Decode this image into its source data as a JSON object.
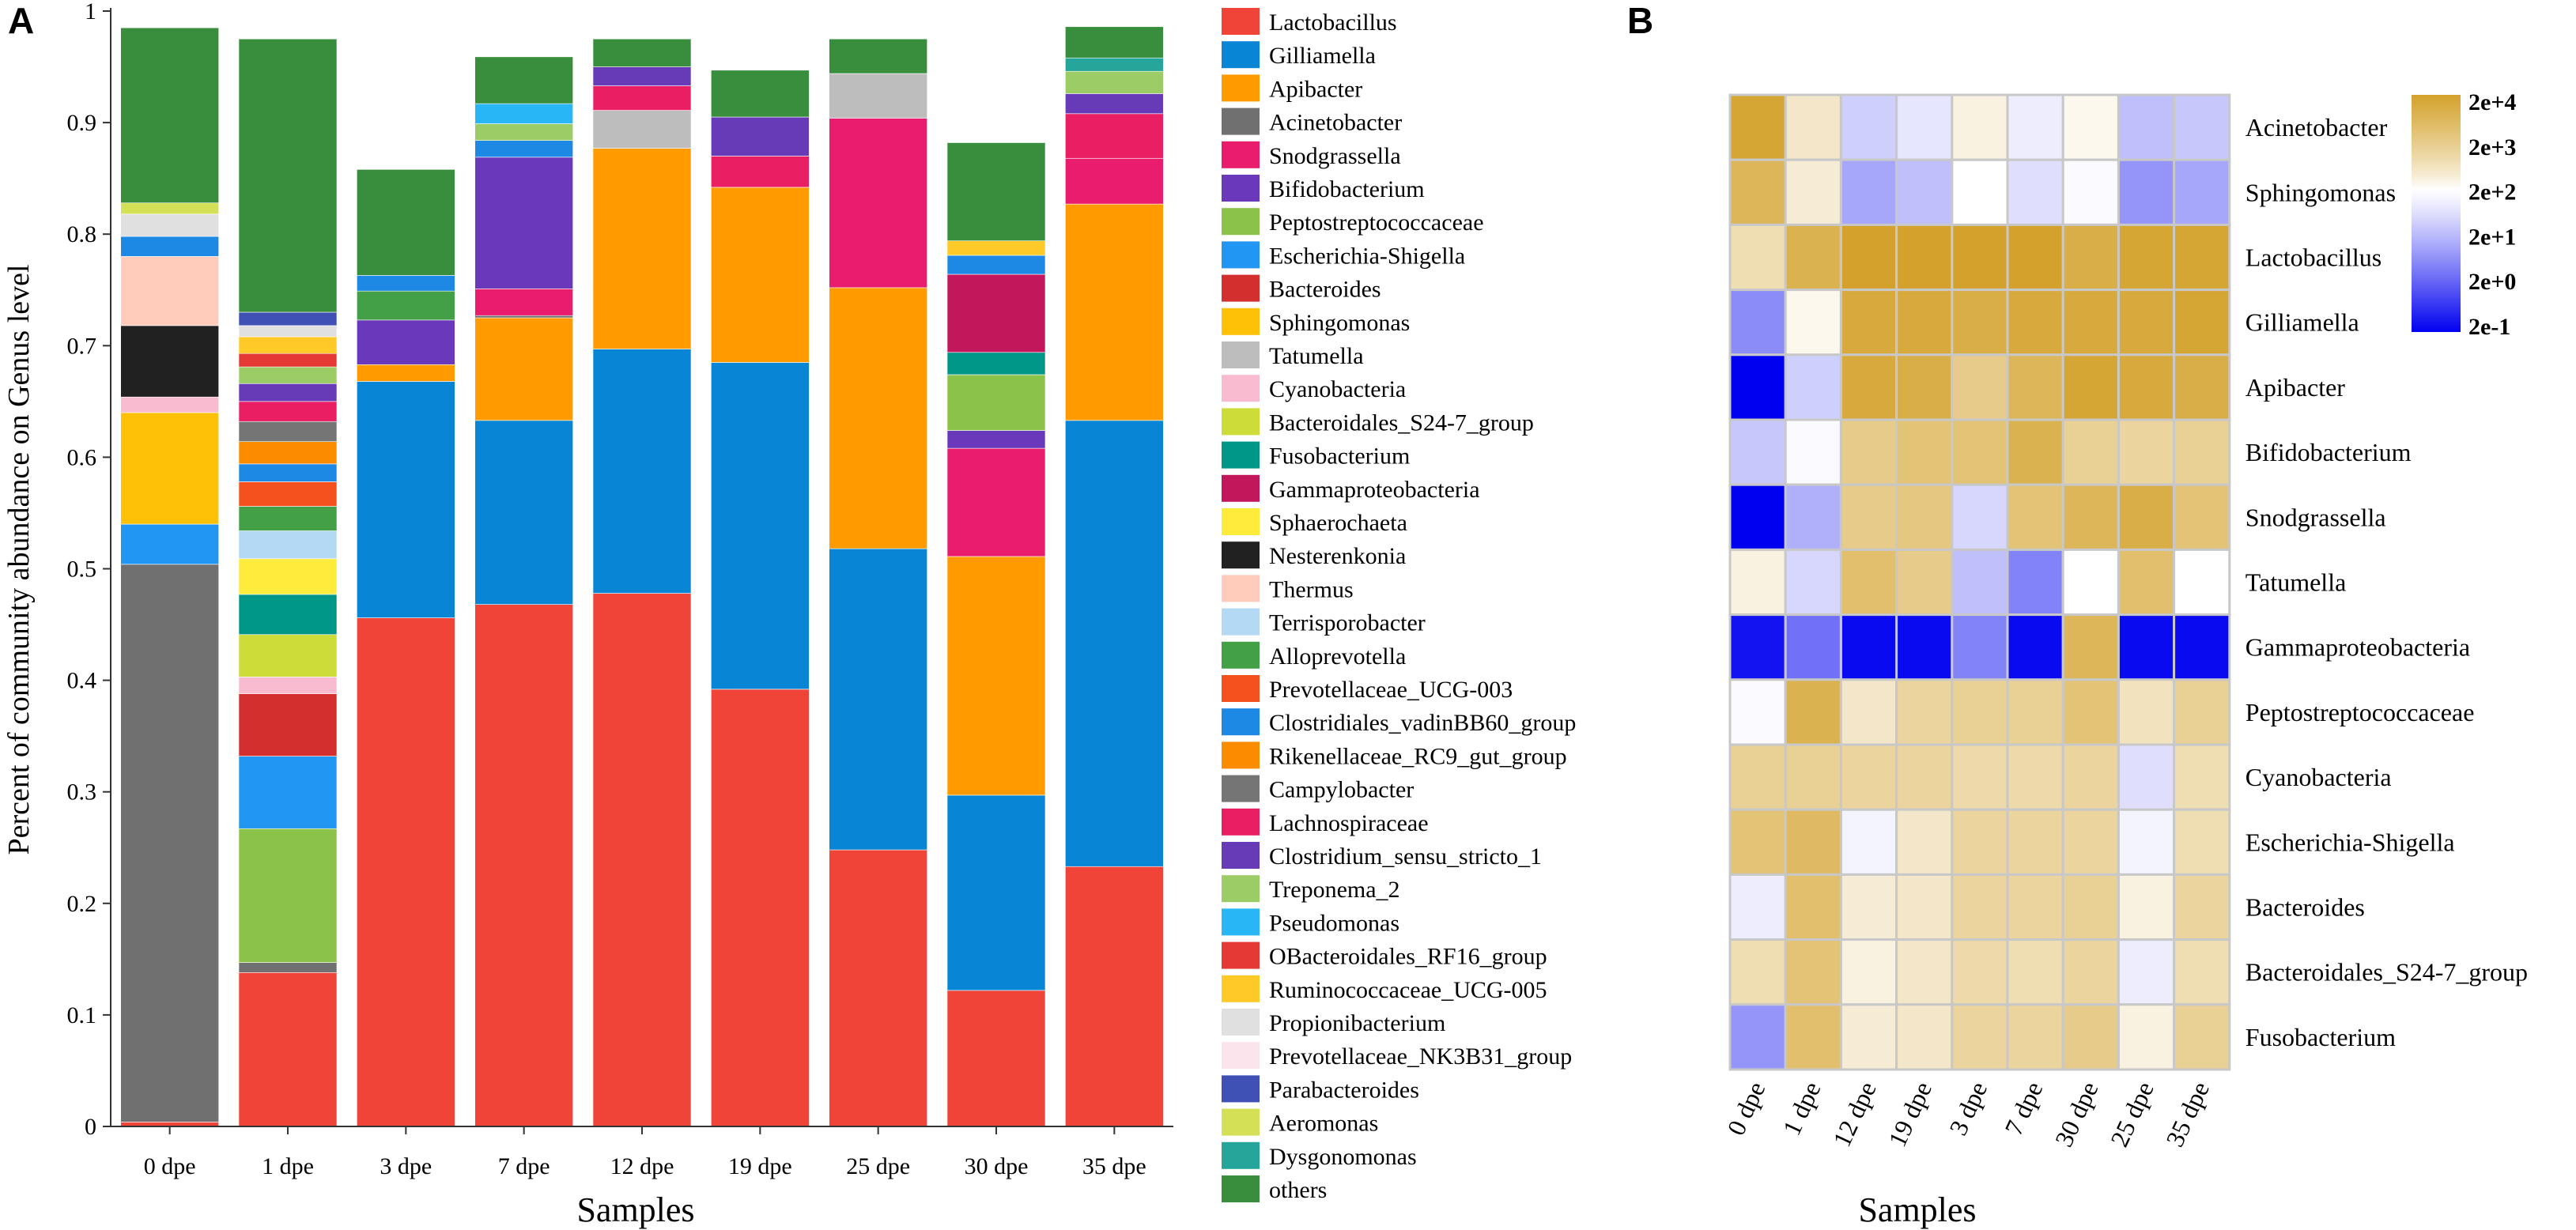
{
  "panel_a": {
    "label": "A"
  },
  "panel_b": {
    "label": "B"
  },
  "chart_data": [
    {
      "type": "bar",
      "stacked": true,
      "title": "",
      "xlabel": "Samples",
      "ylabel": "Percent of community abundance on Genus level",
      "ylim": [
        0,
        1
      ],
      "yticks": [
        "0",
        "0.1",
        "0.2",
        "0.3",
        "0.4",
        "0.5",
        "0.6",
        "0.7",
        "0.8",
        "0.9",
        "1"
      ],
      "categories": [
        "0 dpe",
        "1 dpe",
        "3 dpe",
        "7 dpe",
        "12 dpe",
        "19 dpe",
        "25 dpe",
        "30 dpe",
        "35 dpe"
      ],
      "legend_position": "right",
      "series": [
        {
          "name": "Lactobacillus",
          "color": "#f04438",
          "values": [
            0.004,
            0.138,
            0.456,
            0.468,
            0.478,
            0.392,
            0.248,
            0.122,
            0.233
          ]
        },
        {
          "name": "Gilliamella",
          "color": "#0985d6",
          "values": [
            0.0,
            0.0,
            0.212,
            0.165,
            0.219,
            0.293,
            0.27,
            0.175,
            0.4
          ]
        },
        {
          "name": "Apibacter",
          "color": "#ff9b00",
          "values": [
            0.0,
            0.0,
            0.015,
            0.092,
            0.18,
            0.157,
            0.234,
            0.214,
            0.194
          ]
        },
        {
          "name": "Acinetobacter",
          "color": "#707070",
          "values": [
            0.5,
            0.009,
            0.0,
            0.002,
            0.0,
            0.0,
            0.0,
            0.0,
            0.0
          ]
        },
        {
          "name": "Snodgrassella",
          "color": "#ea1c6d",
          "values": [
            0.0,
            0.0,
            0.0,
            0.024,
            0.0,
            0.0,
            0.152,
            0.097,
            0.041
          ]
        },
        {
          "name": "Bifidobacterium",
          "color": "#6a39bb",
          "values": [
            0.0,
            0.0,
            0.04,
            0.118,
            0.0,
            0.0,
            0.0,
            0.016,
            0.0
          ]
        },
        {
          "name": "Peptostreptococcaceae",
          "color": "#8bc34a",
          "values": [
            0.0,
            0.12,
            0.0,
            0.0,
            0.0,
            0.0,
            0.0,
            0.05,
            0.0
          ]
        },
        {
          "name": "Escherichia-Shigella",
          "color": "#2196f3",
          "values": [
            0.036,
            0.065,
            0.0,
            0.0,
            0.0,
            0.0,
            0.0,
            0.0,
            0.0
          ]
        },
        {
          "name": "Bacteroides",
          "color": "#d32f2f",
          "values": [
            0.0,
            0.056,
            0.0,
            0.0,
            0.0,
            0.0,
            0.0,
            0.0,
            0.0
          ]
        },
        {
          "name": "Sphingomonas",
          "color": "#ffc107",
          "values": [
            0.1,
            0.0,
            0.0,
            0.0,
            0.0,
            0.0,
            0.0,
            0.0,
            0.0
          ]
        },
        {
          "name": "Tatumella",
          "color": "#bdbdbd",
          "values": [
            0.0,
            0.0,
            0.0,
            0.0,
            0.034,
            0.0,
            0.04,
            0.0,
            0.0
          ]
        },
        {
          "name": "Cyanobacteria",
          "color": "#f8bbd0",
          "values": [
            0.014,
            0.015,
            0.0,
            0.0,
            0.0,
            0.0,
            0.0,
            0.0,
            0.0
          ]
        },
        {
          "name": "Bacteroidales_S24-7_group",
          "color": "#cddc39",
          "values": [
            0.0,
            0.038,
            0.0,
            0.0,
            0.0,
            0.0,
            0.0,
            0.0,
            0.0
          ]
        },
        {
          "name": "Fusobacterium",
          "color": "#009688",
          "values": [
            0.0,
            0.036,
            0.0,
            0.0,
            0.0,
            0.0,
            0.0,
            0.02,
            0.0
          ]
        },
        {
          "name": "Gammaproteobacteria",
          "color": "#c2185b",
          "values": [
            0.0,
            0.0,
            0.0,
            0.0,
            0.0,
            0.0,
            0.0,
            0.07,
            0.0
          ]
        },
        {
          "name": "Sphaerochaeta",
          "color": "#ffeb3b",
          "values": [
            0.0,
            0.032,
            0.0,
            0.0,
            0.0,
            0.0,
            0.0,
            0.0,
            0.0
          ]
        },
        {
          "name": "Nesterenkonia",
          "color": "#212121",
          "values": [
            0.064,
            0.0,
            0.0,
            0.0,
            0.0,
            0.0,
            0.0,
            0.0,
            0.0
          ]
        },
        {
          "name": "Thermus",
          "color": "#ffccbc",
          "values": [
            0.062,
            0.0,
            0.0,
            0.0,
            0.0,
            0.0,
            0.0,
            0.0,
            0.0
          ]
        },
        {
          "name": "Terrisporobacter",
          "color": "#b3d9f5",
          "values": [
            0.0,
            0.025,
            0.0,
            0.0,
            0.0,
            0.0,
            0.0,
            0.0,
            0.0
          ]
        },
        {
          "name": "Alloprevotella",
          "color": "#43a047",
          "values": [
            0.0,
            0.022,
            0.026,
            0.0,
            0.0,
            0.0,
            0.0,
            0.0,
            0.0
          ]
        },
        {
          "name": "Prevotellaceae_UCG-003",
          "color": "#f4511e",
          "values": [
            0.0,
            0.022,
            0.0,
            0.0,
            0.0,
            0.0,
            0.0,
            0.0,
            0.0
          ]
        },
        {
          "name": "Clostridiales_vadinBB60_group",
          "color": "#1e88e5",
          "values": [
            0.018,
            0.016,
            0.014,
            0.015,
            0.0,
            0.0,
            0.0,
            0.017,
            0.0
          ]
        },
        {
          "name": "Rikenellaceae_RC9_gut_group",
          "color": "#fb8c00",
          "values": [
            0.0,
            0.02,
            0.0,
            0.0,
            0.0,
            0.0,
            0.0,
            0.0,
            0.0
          ]
        },
        {
          "name": "Campylobacter",
          "color": "#757575",
          "values": [
            0.0,
            0.018,
            0.0,
            0.0,
            0.0,
            0.0,
            0.0,
            0.0,
            0.0
          ]
        },
        {
          "name": "Lachnospiraceae",
          "color": "#e91e63",
          "values": [
            0.0,
            0.018,
            0.0,
            0.0,
            0.022,
            0.028,
            0.0,
            0.0,
            0.04
          ]
        },
        {
          "name": "Clostridium_sensu_stricto_1",
          "color": "#673ab7",
          "values": [
            0.0,
            0.016,
            0.0,
            0.0,
            0.017,
            0.035,
            0.0,
            0.0,
            0.018
          ]
        },
        {
          "name": "Treponema_2",
          "color": "#9ccc65",
          "values": [
            0.0,
            0.015,
            0.0,
            0.015,
            0.0,
            0.0,
            0.0,
            0.0,
            0.02
          ]
        },
        {
          "name": "Pseudomonas",
          "color": "#29b6f6",
          "values": [
            0.0,
            0.0,
            0.0,
            0.018,
            0.0,
            0.0,
            0.0,
            0.0,
            0.0
          ]
        },
        {
          "name": "OBacteroidales_RF16_group",
          "color": "#e53935",
          "values": [
            0.0,
            0.012,
            0.0,
            0.0,
            0.0,
            0.0,
            0.0,
            0.0,
            0.0
          ]
        },
        {
          "name": "Ruminococcaceae_UCG-005",
          "color": "#ffca28",
          "values": [
            0.0,
            0.015,
            0.0,
            0.0,
            0.0,
            0.0,
            0.0,
            0.013,
            0.0
          ]
        },
        {
          "name": "Propionibacterium",
          "color": "#e0e0e0",
          "values": [
            0.02,
            0.01,
            0.0,
            0.0,
            0.0,
            0.0,
            0.0,
            0.0,
            0.0
          ]
        },
        {
          "name": "Prevotellaceae_NK3B31_group",
          "color": "#fce4ec",
          "values": [
            0.0,
            0.0,
            0.0,
            0.0,
            0.0,
            0.0,
            0.0,
            0.0,
            0.0
          ]
        },
        {
          "name": "Parabacteroides",
          "color": "#3f51b5",
          "values": [
            0.0,
            0.012,
            0.0,
            0.0,
            0.0,
            0.0,
            0.0,
            0.0,
            0.0
          ]
        },
        {
          "name": "Aeromonas",
          "color": "#d4e157",
          "values": [
            0.01,
            0.0,
            0.0,
            0.0,
            0.0,
            0.0,
            0.0,
            0.0,
            0.0
          ]
        },
        {
          "name": "Dysgonomonas",
          "color": "#26a69a",
          "values": [
            0.0,
            0.0,
            0.0,
            0.0,
            0.0,
            0.0,
            0.0,
            0.0,
            0.012
          ]
        },
        {
          "name": "others",
          "color": "#388e3c",
          "values": [
            0.157,
            0.245,
            0.095,
            0.042,
            0.025,
            0.042,
            0.031,
            0.088,
            0.028
          ]
        }
      ]
    },
    {
      "type": "heatmap",
      "title": "",
      "xlabel": "Samples",
      "ylabel": "",
      "x": [
        "0 dpe",
        "1 dpe",
        "12 dpe",
        "19 dpe",
        "3 dpe",
        "7 dpe",
        "30 dpe",
        "25 dpe",
        "35 dpe"
      ],
      "y": [
        "Acinetobacter",
        "Sphingomonas",
        "Lactobacillus",
        "Gilliamella",
        "Apibacter",
        "Bifidobacterium",
        "Snodgrassella",
        "Tatumella",
        "Gammaproteobacteria",
        "Peptostreptococcaceae",
        "Cyanobacteria",
        "Escherichia-Shigella",
        "Bacteroides",
        "Bacteroidales_S24-7_group",
        "Fusobacterium"
      ],
      "values_log10": [
        [
          3.9,
          2.4,
          1.3,
          1.6,
          2.2,
          1.7,
          2.1,
          1.1,
          1.2
        ],
        [
          3.5,
          2.3,
          0.8,
          1.1,
          2.0,
          1.5,
          1.9,
          0.6,
          0.8
        ],
        [
          2.6,
          3.6,
          4.0,
          4.0,
          4.0,
          4.1,
          3.7,
          3.9,
          3.9
        ],
        [
          0.5,
          2.1,
          3.8,
          3.8,
          3.7,
          3.8,
          3.8,
          3.8,
          3.9
        ],
        [
          -1.0,
          1.3,
          3.8,
          3.7,
          3.0,
          3.5,
          3.9,
          3.8,
          3.7
        ],
        [
          1.2,
          1.9,
          3.0,
          3.2,
          3.2,
          3.6,
          2.9,
          2.8,
          2.9
        ],
        [
          -1.0,
          0.9,
          3.0,
          3.1,
          1.4,
          3.2,
          3.5,
          3.7,
          3.2
        ],
        [
          2.2,
          1.4,
          3.3,
          3.0,
          1.1,
          0.4,
          2.0,
          3.3,
          2.0
        ],
        [
          -0.8,
          0.2,
          -0.9,
          -0.9,
          0.4,
          -0.9,
          3.5,
          -0.9,
          -0.9
        ],
        [
          1.9,
          3.6,
          2.4,
          2.8,
          2.9,
          2.9,
          3.2,
          2.5,
          2.9
        ],
        [
          2.9,
          2.9,
          2.8,
          2.8,
          2.7,
          2.7,
          2.8,
          1.5,
          2.6
        ],
        [
          3.2,
          3.4,
          1.8,
          2.4,
          2.8,
          2.8,
          2.8,
          1.8,
          2.6
        ],
        [
          1.7,
          3.3,
          2.3,
          2.4,
          2.8,
          2.8,
          2.9,
          2.2,
          2.8
        ],
        [
          2.6,
          3.2,
          2.2,
          2.4,
          2.7,
          2.6,
          2.8,
          1.7,
          2.6
        ],
        [
          0.6,
          3.3,
          2.3,
          2.4,
          2.8,
          2.8,
          3.0,
          2.2,
          2.9
        ]
      ],
      "colorbar": {
        "labels": [
          "2e+4",
          "2e+3",
          "2e+2",
          "2e+1",
          "2e+0",
          "2e-1"
        ],
        "range_log10": [
          -1,
          4
        ],
        "colors": {
          "high": "#d4a22c",
          "mid": "#ffffff",
          "low": "#0000f0"
        }
      }
    }
  ]
}
